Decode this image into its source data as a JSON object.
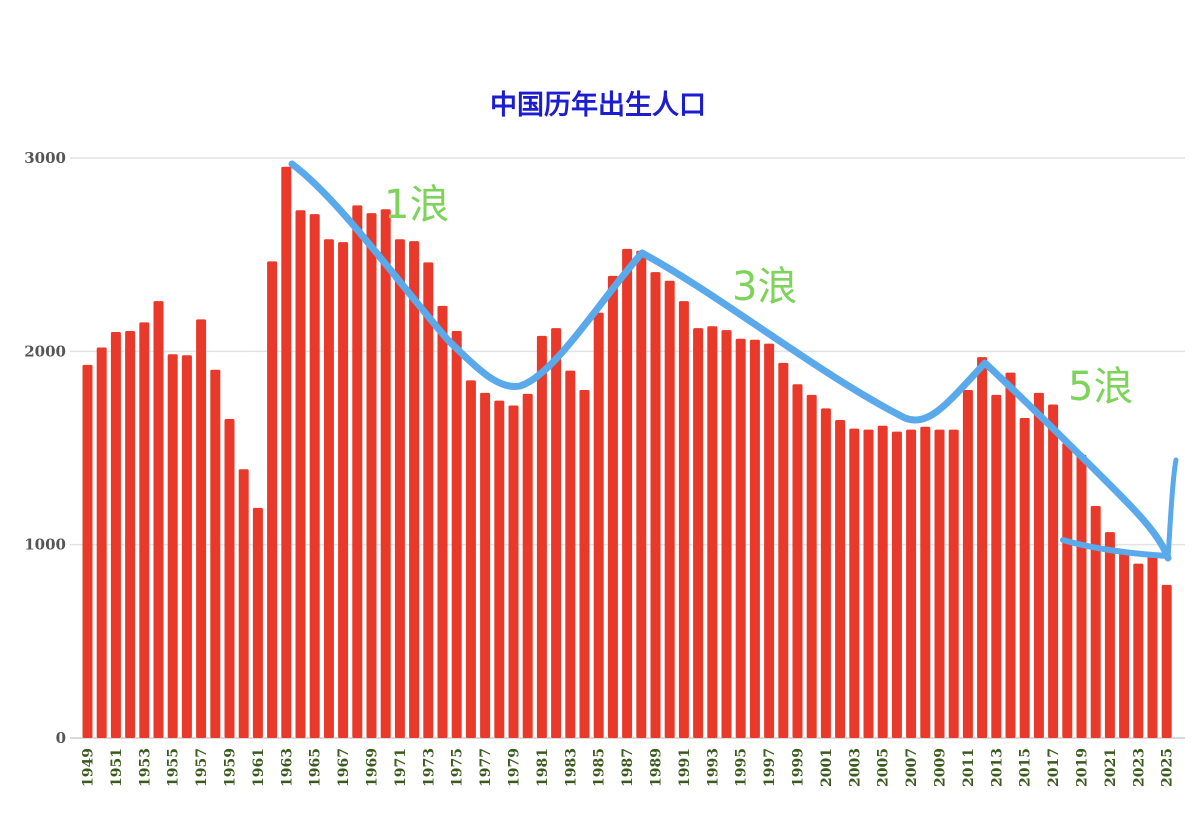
{
  "chart_data": {
    "type": "bar",
    "title": "中国历年出生人口",
    "xlabel": "",
    "ylabel": "",
    "ylim": [
      0,
      3000
    ],
    "yticks": [
      0,
      1000,
      2000,
      3000
    ],
    "grid": true,
    "legend": "none",
    "categories": [
      "1949",
      "1950",
      "1951",
      "1952",
      "1953",
      "1954",
      "1955",
      "1956",
      "1957",
      "1958",
      "1959",
      "1960",
      "1961",
      "1962",
      "1963",
      "1964",
      "1965",
      "1966",
      "1967",
      "1968",
      "1969",
      "1970",
      "1971",
      "1972",
      "1973",
      "1974",
      "1975",
      "1976",
      "1977",
      "1978",
      "1979",
      "1980",
      "1981",
      "1982",
      "1983",
      "1984",
      "1985",
      "1986",
      "1987",
      "1988",
      "1989",
      "1990",
      "1991",
      "1992",
      "1993",
      "1994",
      "1995",
      "1996",
      "1997",
      "1998",
      "1999",
      "2000",
      "2001",
      "2002",
      "2003",
      "2004",
      "2005",
      "2006",
      "2007",
      "2008",
      "2009",
      "2010",
      "2011",
      "2012",
      "2013",
      "2014",
      "2015",
      "2016",
      "2017",
      "2018",
      "2019",
      "2020",
      "2021",
      "2022",
      "2023",
      "2024",
      "2025"
    ],
    "xtick_labels": [
      "1949",
      "1951",
      "1953",
      "1955",
      "1957",
      "1959",
      "1961",
      "1963",
      "1965",
      "1967",
      "1969",
      "1971",
      "1973",
      "1975",
      "1977",
      "1979",
      "1981",
      "1983",
      "1985",
      "1987",
      "1989",
      "1991",
      "1993",
      "1995",
      "1997",
      "1999",
      "2001",
      "2003",
      "2005",
      "2007",
      "2009",
      "2011",
      "2013",
      "2015",
      "2017",
      "2019",
      "2021",
      "2023",
      "2025"
    ],
    "values": [
      1930,
      2020,
      2100,
      2105,
      2150,
      2260,
      1985,
      1980,
      2165,
      1905,
      1650,
      1390,
      1190,
      2465,
      2955,
      2730,
      2710,
      2580,
      2565,
      2755,
      2715,
      2735,
      2580,
      2570,
      2460,
      2235,
      2105,
      1850,
      1785,
      1745,
      1720,
      1780,
      2080,
      2120,
      1900,
      1800,
      2200,
      2390,
      2530,
      2520,
      2410,
      2365,
      2260,
      2120,
      2130,
      2110,
      2065,
      2060,
      2040,
      1940,
      1830,
      1775,
      1705,
      1645,
      1600,
      1595,
      1615,
      1585,
      1595,
      1610,
      1595,
      1595,
      1800,
      1970,
      1775,
      1890,
      1655,
      1785,
      1725,
      1525,
      1465,
      1200,
      1065,
      956,
      902,
      954,
      792
    ],
    "bar_color": "#e8392a",
    "annotations": [
      {
        "text": "1浪",
        "color": "#7ed35a"
      },
      {
        "text": "3浪",
        "color": "#7ed35a"
      },
      {
        "text": "5浪",
        "color": "#7ed35a"
      }
    ],
    "trend_line_color": "#5aa9ea"
  }
}
